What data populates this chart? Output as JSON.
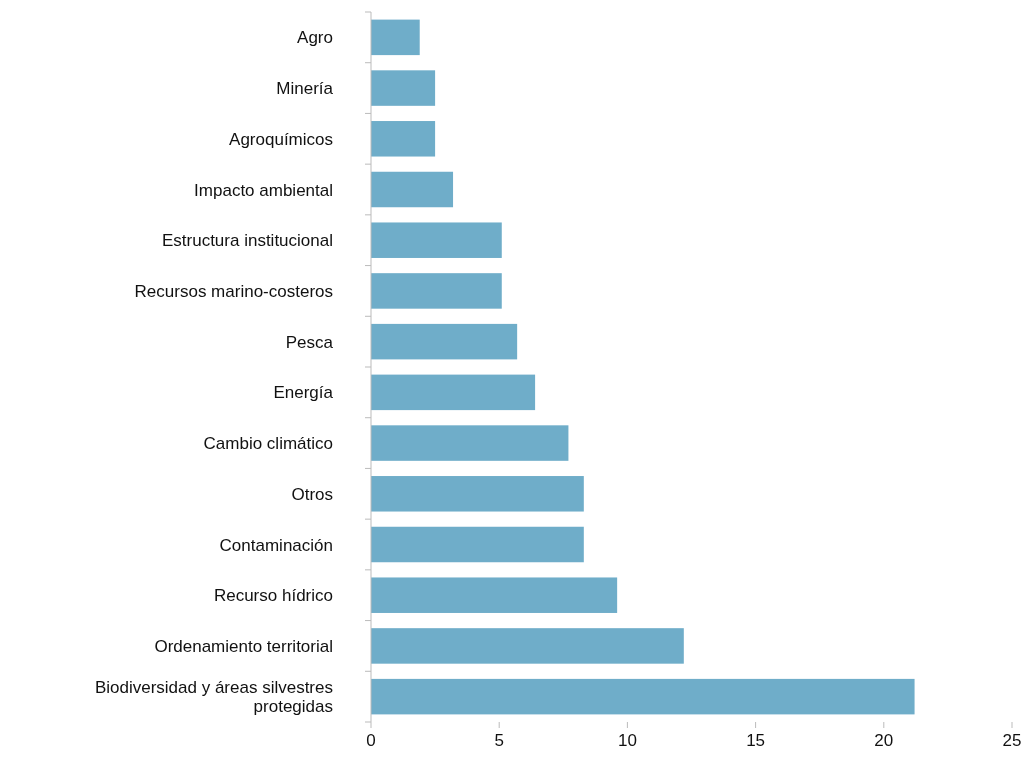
{
  "chart_data": {
    "type": "bar",
    "orientation": "horizontal",
    "categories": [
      "Agro",
      "Minería",
      "Agroquímicos",
      "Impacto ambiental",
      "Estructura institucional",
      "Recursos marino-costeros",
      "Pesca",
      "Energía",
      "Cambio climático",
      "Otros",
      "Contaminación",
      "Recurso hídrico",
      "Ordenamiento territorial",
      "Biodiversidad y áreas silvestres protegidas"
    ],
    "values": [
      1.9,
      2.5,
      2.5,
      3.2,
      5.1,
      5.1,
      5.7,
      6.4,
      7.7,
      8.3,
      8.3,
      9.6,
      12.2,
      21.2
    ],
    "color": "#6fadc9",
    "xlim": [
      0,
      25
    ],
    "xticks": [
      0,
      5,
      10,
      15,
      20,
      25
    ]
  }
}
